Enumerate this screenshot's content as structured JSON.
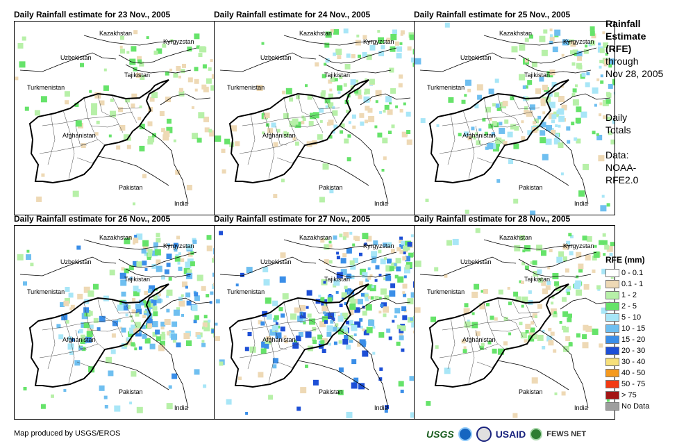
{
  "panels": [
    {
      "title": "Daily Rainfall estimate for 23 Nov., 2005",
      "intensity": 1
    },
    {
      "title": "Daily Rainfall estimate for 24 Nov., 2005",
      "intensity": 2
    },
    {
      "title": "Daily Rainfall estimate for 25 Nov., 2005",
      "intensity": 3
    },
    {
      "title": "Daily Rainfall estimate for 26 Nov., 2005",
      "intensity": 4
    },
    {
      "title": "Daily Rainfall estimate for 27 Nov., 2005",
      "intensity": 5
    },
    {
      "title": "Daily Rainfall estimate for 28 Nov., 2005",
      "intensity": 2
    }
  ],
  "map_labels": {
    "kazakhstan": "Kazakhstan",
    "kyrgyzstan": "Kyrgyzstan",
    "uzbekistan": "Uzbekistan",
    "tajikistan": "Tajikistan",
    "turkmenistan": "Turkmenistan",
    "afghanistan": "Afghanistan",
    "pakistan": "Pakistan",
    "india": "India"
  },
  "side": {
    "title_line1": "Rainfall",
    "title_line2": "Estimate",
    "title_line3": "(RFE)",
    "through": "through",
    "date": "Nov 28, 2005",
    "daily_line1": "Daily",
    "daily_line2": "Totals",
    "data_line1": "Data:",
    "data_line2": "NOAA-",
    "data_line3": "RFE2.0"
  },
  "legend": {
    "title": "RFE (mm)",
    "items": [
      {
        "label": "0 - 0.1",
        "color": "#ffffff"
      },
      {
        "label": "0.1 - 1",
        "color": "#eed9b5"
      },
      {
        "label": "1 - 2",
        "color": "#b7f0a8"
      },
      {
        "label": "2 - 5",
        "color": "#66e36a"
      },
      {
        "label": "5 - 10",
        "color": "#a8e6f7"
      },
      {
        "label": "10 - 15",
        "color": "#6fbff0"
      },
      {
        "label": "15 - 20",
        "color": "#3a8ee8"
      },
      {
        "label": "20 - 30",
        "color": "#1d4fd6"
      },
      {
        "label": "30 - 40",
        "color": "#f7e07a"
      },
      {
        "label": "40 - 50",
        "color": "#f59a1e"
      },
      {
        "label": "50 - 75",
        "color": "#f23a12"
      },
      {
        "label": "> 75",
        "color": "#a31515"
      },
      {
        "label": "No Data",
        "color": "#9e9e9e"
      }
    ]
  },
  "footer": {
    "credit": "Map produced by USGS/EROS",
    "logo_usgs": "USGS",
    "logo_usaid": "USAID",
    "logo_fews": "FEWS NET"
  }
}
